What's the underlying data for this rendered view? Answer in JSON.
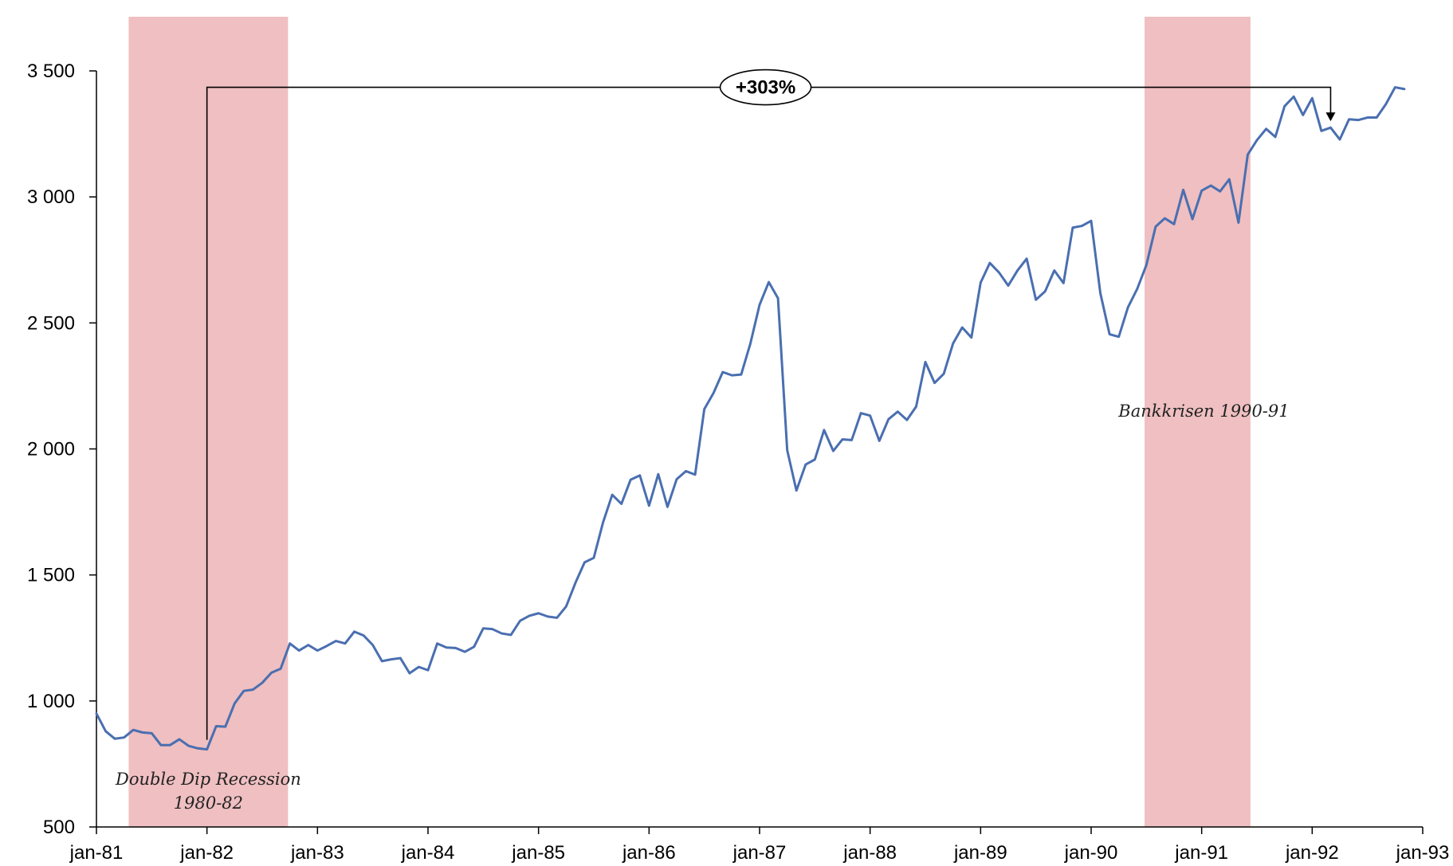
{
  "chart_data": {
    "type": "line",
    "title": "",
    "xlabel": "",
    "ylabel": "",
    "ylim": [
      500,
      3500
    ],
    "yticks": [
      500,
      1000,
      1500,
      2000,
      2500,
      3000,
      3500
    ],
    "ytick_labels": [
      "500",
      "1 000",
      "1 500",
      "2 000",
      "2 500",
      "3 000",
      "3 500"
    ],
    "xlim": [
      0,
      144
    ],
    "xticks": [
      0,
      12,
      24,
      36,
      48,
      60,
      72,
      84,
      96,
      108,
      120,
      132,
      144
    ],
    "xtick_labels": [
      "jan-81",
      "jan-82",
      "jan-83",
      "jan-84",
      "jan-85",
      "jan-86",
      "jan-87",
      "jan-88",
      "jan-89",
      "jan-90",
      "jan-91",
      "jan-92",
      "jan-93"
    ],
    "grid": false,
    "legend": "none",
    "line_color": "#4a6fb0",
    "recession_color": "#efbfc1",
    "recessions": [
      {
        "start": 3.5,
        "end": 20.8,
        "label": [
          "Double Dip Recession",
          "1980-82"
        ]
      },
      {
        "start": 113.8,
        "end": 125.3,
        "label": [
          "Bankkrisen 1990-91"
        ]
      }
    ],
    "annotation": {
      "text": "+303%",
      "from_x": 12,
      "to_x": 134,
      "level": 3435
    },
    "series": [
      {
        "values": [
          950,
          880,
          850,
          855,
          885,
          875,
          872,
          825,
          825,
          848,
          822,
          812,
          808,
          900,
          898,
          990,
          1040,
          1045,
          1072,
          1112,
          1128,
          1228,
          1200,
          1222,
          1200,
          1218,
          1238,
          1228,
          1275,
          1260,
          1222,
          1158,
          1165,
          1170,
          1110,
          1135,
          1122,
          1228,
          1212,
          1210,
          1195,
          1215,
          1288,
          1285,
          1268,
          1262,
          1318,
          1338,
          1348,
          1335,
          1330,
          1375,
          1468,
          1550,
          1568,
          1708,
          1818,
          1782,
          1878,
          1895,
          1775,
          1900,
          1770,
          1880,
          1912,
          1898,
          2158,
          2222,
          2305,
          2292,
          2295,
          2418,
          2572,
          2662,
          2598,
          1995,
          1835,
          1938,
          1958,
          2075,
          1992,
          2038,
          2035,
          2142,
          2132,
          2032,
          2118,
          2148,
          2115,
          2168,
          2345,
          2262,
          2298,
          2418,
          2482,
          2442,
          2660,
          2738,
          2700,
          2648,
          2708,
          2755,
          2592,
          2625,
          2708,
          2658,
          2878,
          2885,
          2905,
          2618,
          2455,
          2445,
          2562,
          2635,
          2730,
          2882,
          2915,
          2892,
          3028,
          2912,
          3025,
          3045,
          3022,
          3070,
          2898,
          3168,
          3225,
          3270,
          3238,
          3360,
          3398,
          3325,
          3392,
          3262,
          3275,
          3228,
          3308,
          3305,
          3315,
          3315,
          3368,
          3435,
          3428
        ]
      }
    ]
  }
}
